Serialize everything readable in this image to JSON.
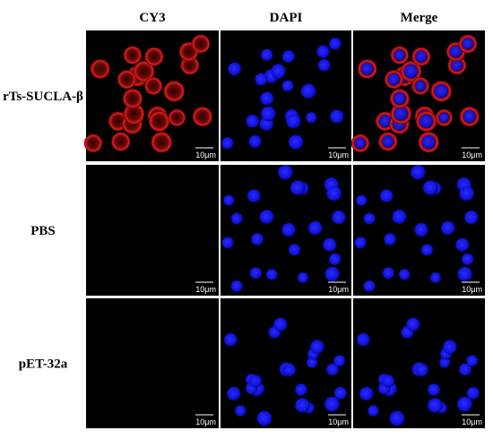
{
  "columns": [
    "CY3",
    "DAPI",
    "Merge"
  ],
  "rows": [
    {
      "label": "rTs-SUCLA-β",
      "scale_bars": [
        "10μm",
        "10μm",
        "10μm"
      ]
    },
    {
      "label": "PBS",
      "scale_bars": [
        "10μm",
        "10μm",
        "10μm"
      ]
    },
    {
      "label": "pET-32a",
      "scale_bars": [
        "10μm",
        "10μm",
        "10μm"
      ]
    }
  ]
}
